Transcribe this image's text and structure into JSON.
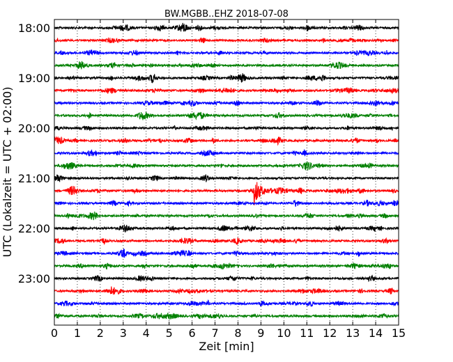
{
  "chart_data": {
    "type": "line",
    "title": "BW.MGBB..EHZ 2018-07-08",
    "xlabel": "Zeit  [min]",
    "ylabel": "UTC (Lokalzeit = UTC + 02:00)",
    "xlim": [
      0,
      15
    ],
    "x_ticks": [
      "0",
      "1",
      "2",
      "3",
      "4",
      "5",
      "6",
      "7",
      "8",
      "9",
      "10",
      "11",
      "12",
      "13",
      "14",
      "15"
    ],
    "y_tick_labels": [
      "18:00",
      "19:00",
      "20:00",
      "21:00",
      "22:00",
      "23:00"
    ],
    "trace_start_times": [
      "18:00",
      "18:15",
      "18:30",
      "18:45",
      "19:00",
      "19:15",
      "19:30",
      "19:45",
      "20:00",
      "20:15",
      "20:30",
      "20:45",
      "21:00",
      "21:15",
      "21:30",
      "21:45",
      "22:00",
      "22:15",
      "22:30",
      "22:45",
      "23:00",
      "23:15",
      "23:30",
      "23:45"
    ],
    "trace_colors": [
      "#000000",
      "#ff0000",
      "#0000ff",
      "#008000"
    ],
    "grid": "vertical-dotted",
    "event": {
      "trace": "21:15",
      "time_min": 8.7
    }
  }
}
